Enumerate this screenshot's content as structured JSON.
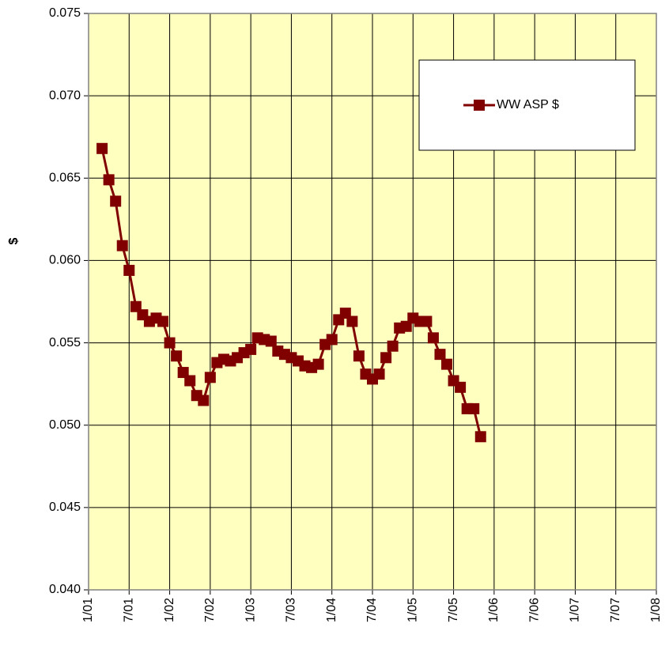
{
  "chart_data": {
    "type": "line",
    "ylabel": "$",
    "x": [
      "2001-03",
      "2001-04",
      "2001-05",
      "2001-06",
      "2001-07",
      "2001-08",
      "2001-09",
      "2001-10",
      "2001-11",
      "2001-12",
      "2002-01",
      "2002-02",
      "2002-03",
      "2002-04",
      "2002-05",
      "2002-06",
      "2002-07",
      "2002-08",
      "2002-09",
      "2002-10",
      "2002-11",
      "2002-12",
      "2003-01",
      "2003-02",
      "2003-03",
      "2003-04",
      "2003-05",
      "2003-06",
      "2003-07",
      "2003-08",
      "2003-09",
      "2003-10",
      "2003-11",
      "2003-12",
      "2004-01",
      "2004-02",
      "2004-03",
      "2004-04",
      "2004-05",
      "2004-06",
      "2004-07",
      "2004-08",
      "2004-09",
      "2004-10",
      "2004-11",
      "2004-12",
      "2005-01",
      "2005-02",
      "2005-03",
      "2005-04",
      "2005-05",
      "2005-06",
      "2005-07",
      "2005-08",
      "2005-09",
      "2005-10",
      "2005-11"
    ],
    "series": [
      {
        "name": "WW ASP $",
        "color": "#800000",
        "values": [
          0.0668,
          0.0649,
          0.0636,
          0.0609,
          0.0594,
          0.0572,
          0.0567,
          0.0563,
          0.0565,
          0.0563,
          0.055,
          0.0542,
          0.0532,
          0.0527,
          0.0518,
          0.0515,
          0.0529,
          0.0538,
          0.054,
          0.0539,
          0.0541,
          0.0544,
          0.0546,
          0.0553,
          0.0552,
          0.0551,
          0.0545,
          0.0543,
          0.0541,
          0.0539,
          0.0536,
          0.0535,
          0.0537,
          0.0549,
          0.0552,
          0.0564,
          0.0568,
          0.0563,
          0.0542,
          0.0531,
          0.0528,
          0.0531,
          0.0541,
          0.0548,
          0.0559,
          0.056,
          0.0565,
          0.0563,
          0.0563,
          0.0553,
          0.0543,
          0.0537,
          0.0527,
          0.0523,
          0.051,
          0.051,
          0.0493
        ]
      }
    ],
    "xlim": [
      "2001-01",
      "2008-01"
    ],
    "xticks": [
      {
        "value": "2001-01",
        "label": "1/01"
      },
      {
        "value": "2001-07",
        "label": "7/01"
      },
      {
        "value": "2002-01",
        "label": "1/02"
      },
      {
        "value": "2002-07",
        "label": "7/02"
      },
      {
        "value": "2003-01",
        "label": "1/03"
      },
      {
        "value": "2003-07",
        "label": "7/03"
      },
      {
        "value": "2004-01",
        "label": "1/04"
      },
      {
        "value": "2004-07",
        "label": "7/04"
      },
      {
        "value": "2005-01",
        "label": "1/05"
      },
      {
        "value": "2005-07",
        "label": "7/05"
      },
      {
        "value": "2006-01",
        "label": "1/06"
      },
      {
        "value": "2006-07",
        "label": "7/06"
      },
      {
        "value": "2007-01",
        "label": "1/07"
      },
      {
        "value": "2007-07",
        "label": "7/07"
      },
      {
        "value": "2008-01",
        "label": "1/08"
      }
    ],
    "ylim": [
      0.04,
      0.075
    ],
    "yticks": [
      {
        "value": 0.04,
        "label": "0.040"
      },
      {
        "value": 0.045,
        "label": "0.045"
      },
      {
        "value": 0.05,
        "label": "0.050"
      },
      {
        "value": 0.055,
        "label": "0.055"
      },
      {
        "value": 0.06,
        "label": "0.060"
      },
      {
        "value": 0.065,
        "label": "0.065"
      },
      {
        "value": 0.07,
        "label": "0.070"
      },
      {
        "value": 0.075,
        "label": "0.075"
      }
    ],
    "grid": true,
    "legend": "upper right",
    "background": "#ffffc0"
  }
}
